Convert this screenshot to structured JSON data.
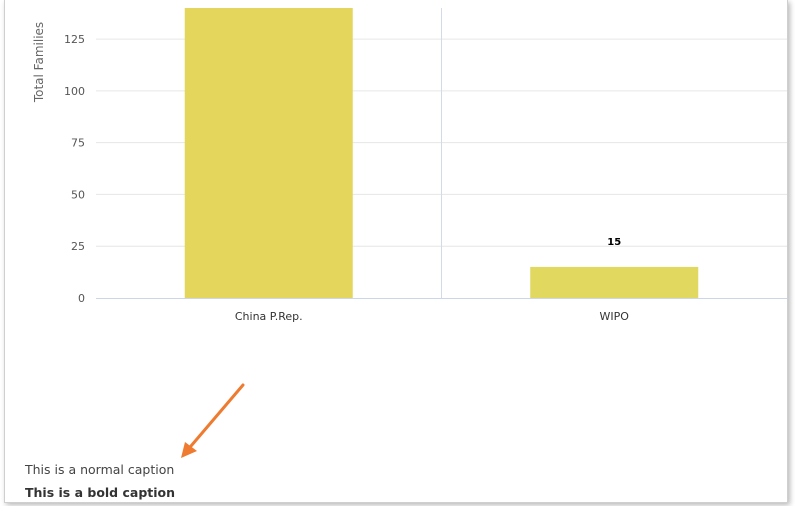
{
  "chart_data": {
    "type": "bar",
    "categories": [
      "China P.Rep.",
      "WIPO"
    ],
    "values": [
      140,
      15
    ],
    "data_labels": [
      "",
      "15"
    ],
    "ylabel": "Total Families",
    "xlabel": "",
    "ylim": [
      0,
      140
    ],
    "yticks": [
      0,
      25,
      50,
      75,
      100,
      125
    ],
    "grid": true,
    "colors": {
      "bar_primary": "#e4d55d",
      "bar_secondary": "#e1d85f"
    }
  },
  "captions": {
    "normal": "This is a normal caption",
    "bold": "This is a bold caption"
  },
  "annotation": {
    "type": "arrow",
    "color": "#ee7b2f"
  }
}
